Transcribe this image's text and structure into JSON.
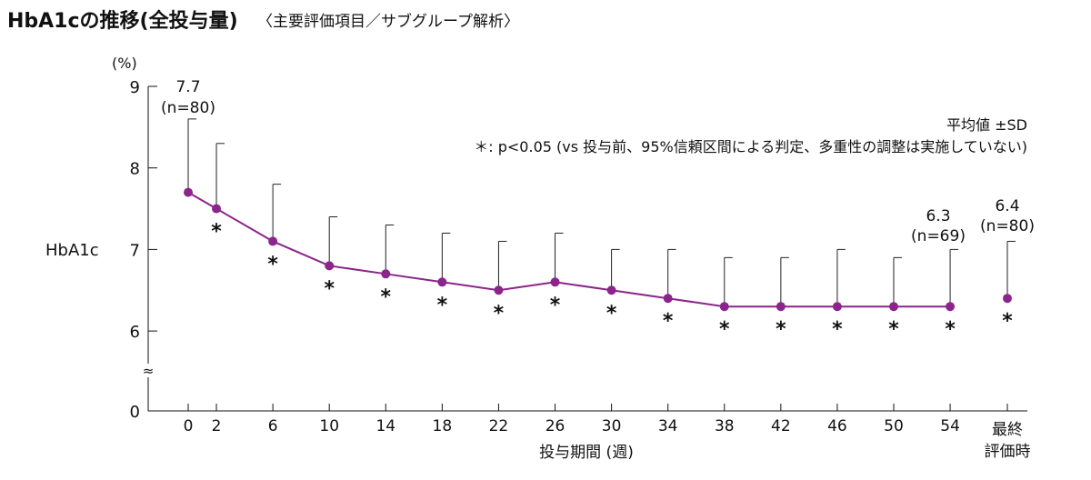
{
  "title_main": "HbA1cの推移(全投与量)",
  "title_sub": "〈主要評価項目／サブグループ解析〉",
  "chart_data": {
    "type": "line",
    "ylabel": "HbA1c",
    "yunit": "(%)",
    "xlabel": "投与期間 (週)",
    "yticks": [
      "9",
      "8",
      "7",
      "6",
      "0"
    ],
    "ylim": [
      6,
      9
    ],
    "axis_break": "≈",
    "categories": [
      "0",
      "2",
      "6",
      "10",
      "14",
      "18",
      "22",
      "26",
      "30",
      "34",
      "38",
      "42",
      "46",
      "50",
      "54"
    ],
    "final_label": [
      "最終",
      "評価時"
    ],
    "series": [
      {
        "x": [
          0,
          2,
          6,
          10,
          14,
          18,
          22,
          26,
          30,
          34,
          38,
          42,
          46,
          50,
          54
        ],
        "mean": [
          7.7,
          7.5,
          7.1,
          6.8,
          6.7,
          6.6,
          6.5,
          6.6,
          6.5,
          6.4,
          6.3,
          6.3,
          6.3,
          6.3,
          6.3
        ],
        "mean_plus_sd": [
          8.6,
          8.3,
          7.8,
          7.4,
          7.3,
          7.2,
          7.1,
          7.2,
          7.0,
          7.0,
          6.9,
          6.9,
          7.0,
          6.9,
          7.0
        ],
        "significant": [
          false,
          true,
          true,
          true,
          true,
          true,
          true,
          true,
          true,
          true,
          true,
          true,
          true,
          true,
          true
        ]
      }
    ],
    "final": {
      "mean": 6.4,
      "mean_plus_sd": 7.1,
      "significant": true
    },
    "annotations": [
      {
        "at": "0",
        "value": "7.7",
        "n": "(n=80)"
      },
      {
        "at": "54",
        "value": "6.3",
        "n": "(n=69)"
      },
      {
        "at": "final",
        "value": "6.4",
        "n": "(n=80)"
      }
    ],
    "legend_stat": "平均値 ±SD",
    "footnote": "＊: p<0.05 (vs 投与前、95%信頼区間による判定、多重性の調整は実施していない)",
    "sig_marker": "＊",
    "color": "#8b248b"
  }
}
